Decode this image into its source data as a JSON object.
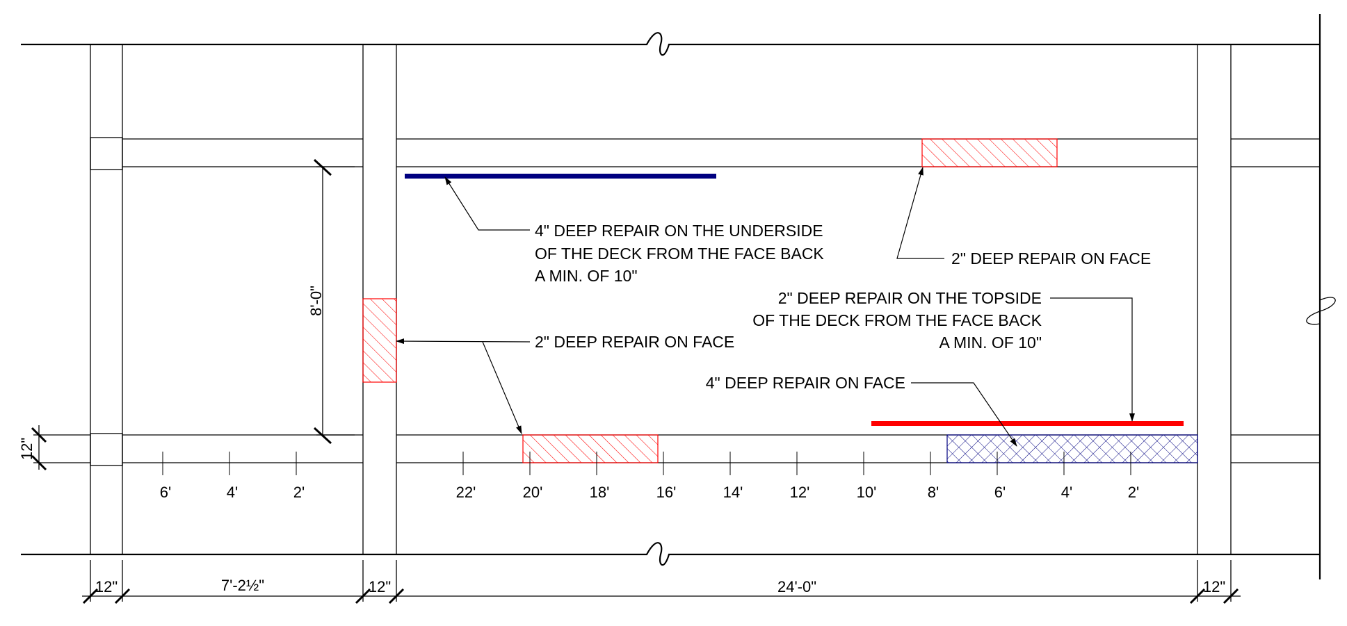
{
  "notes": {
    "underside_repair": [
      "4\" DEEP REPAIR ON THE UNDERSIDE",
      "OF THE DECK FROM THE FACE BACK",
      "A MIN. OF 10\""
    ],
    "face_repair_top": "2\" DEEP REPAIR ON FACE",
    "face_repair_mid": "2\" DEEP REPAIR ON FACE",
    "topside_repair": [
      "2\" DEEP REPAIR ON THE TOPSIDE",
      "OF THE DECK FROM THE FACE BACK",
      "A MIN. OF 10\""
    ],
    "face_repair_4in": "4\" DEEP REPAIR ON FACE"
  },
  "dimensions": {
    "vertical_span": "8'-0\"",
    "vertical_small": "12\"",
    "bottom": [
      "12\"",
      "7'-2½\"",
      "12\"",
      "24'-0\"",
      "12\""
    ]
  },
  "stations": {
    "left_bay": [
      "6'",
      "4'",
      "2'"
    ],
    "right_bay": [
      "22'",
      "20'",
      "18'",
      "16'",
      "14'",
      "12'",
      "10'",
      "8'",
      "6'",
      "4'",
      "2'"
    ]
  },
  "colors": {
    "line": "#000000",
    "repair_red": "#ff0000",
    "repair_blue": "#000080"
  }
}
